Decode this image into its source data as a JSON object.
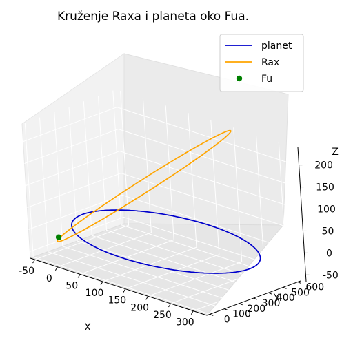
{
  "chart_data": {
    "type": "line3d",
    "title": "Kruženje Raxa i planeta oko Fua.",
    "xlabel": "X",
    "ylabel": "Y",
    "zlabel": "Z",
    "x_ticks": [
      "-50",
      "0",
      "50",
      "100",
      "150",
      "200",
      "250",
      "300"
    ],
    "y_ticks": [
      "0",
      "100",
      "200",
      "300",
      "400",
      "500",
      "600"
    ],
    "z_ticks": [
      "-50",
      "0",
      "50",
      "100",
      "150",
      "200"
    ],
    "xlim": [
      -60,
      330
    ],
    "ylim": [
      -20,
      620
    ],
    "zlim": [
      -65,
      240
    ],
    "grid": true,
    "legend_position": "upper right",
    "series": [
      {
        "name": "planet",
        "kind": "line",
        "color": "#0000cc",
        "description": "planar elliptical orbit at z≈0 around Fu, spanning x≈-50..330, y≈0..600"
      },
      {
        "name": "Rax",
        "kind": "line",
        "color": "#ffa500",
        "description": "inclined elongated orbit rising to z≈230 near the far corner"
      },
      {
        "name": "Fu",
        "kind": "point",
        "color": "#008000",
        "x": 0,
        "y": 0,
        "z": 0
      }
    ]
  }
}
